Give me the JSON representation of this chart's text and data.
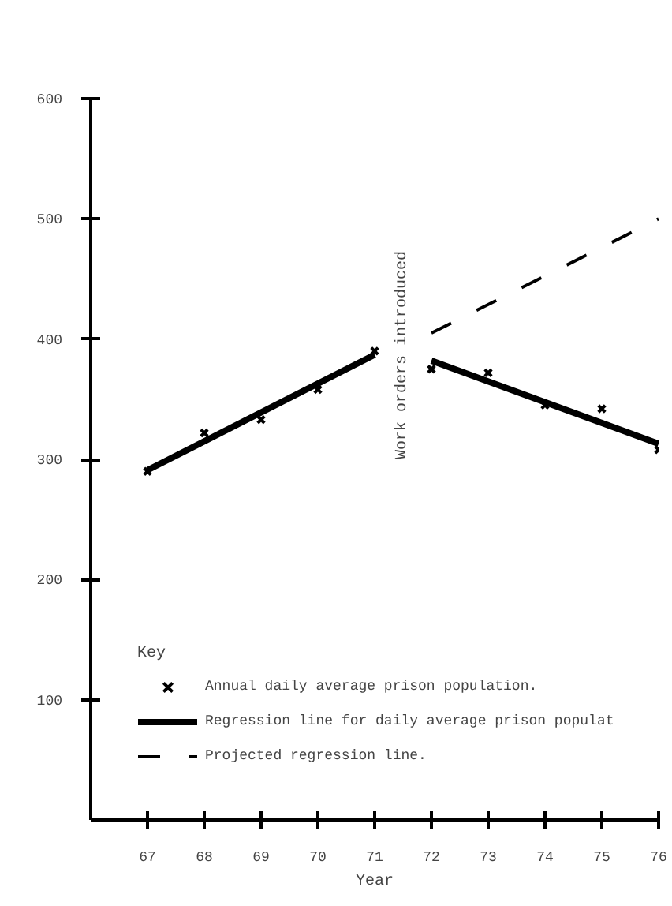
{
  "chart_data": {
    "type": "line",
    "xlabel": "Year",
    "legend_title": "Key",
    "legend": "bottom left",
    "grid": false,
    "xlim": [
      66,
      76
    ],
    "xticks": [
      67,
      68,
      69,
      70,
      71,
      72,
      73,
      74,
      75,
      76
    ],
    "ylim": [
      0,
      600
    ],
    "yticks": [
      100,
      200,
      300,
      400,
      500,
      600
    ],
    "series": [
      {
        "name": "Annual daily average prison population.",
        "type": "scatter",
        "marker": "cross",
        "color": "#000000",
        "x": [
          67,
          68,
          69,
          70,
          71,
          72,
          73,
          74,
          75,
          76
        ],
        "values": [
          290,
          322,
          333,
          358,
          390,
          375,
          372,
          345,
          342,
          308
        ]
      },
      {
        "name": "Regression line for daily average prison populat",
        "line_style": "solid",
        "color": "#000000",
        "x": [
          67,
          71,
          71.5,
          72,
          76
        ],
        "values": [
          291,
          387,
          null,
          382,
          313
        ]
      },
      {
        "name": "Projected regression line.",
        "line_style": "dashed",
        "color": "#000000",
        "x": [
          72,
          76
        ],
        "values": [
          405,
          500
        ]
      }
    ],
    "annotations": [
      "Work orders introduced"
    ]
  }
}
